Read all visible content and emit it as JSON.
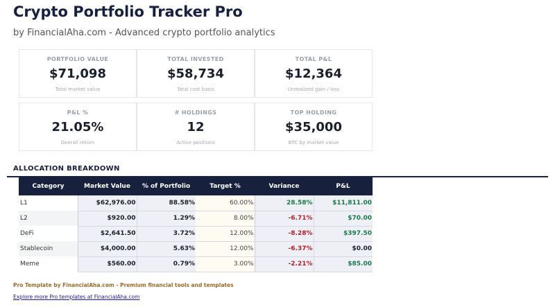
{
  "header": {
    "title": "Crypto Portfolio Tracker Pro",
    "subtitle": "by FinancialAha.com - Advanced crypto portfolio analytics"
  },
  "cards": [
    {
      "label": "PORTFOLIO VALUE",
      "value": "$71,098",
      "note": "Total market value"
    },
    {
      "label": "TOTAL INVESTED",
      "value": "$58,734",
      "note": "Total cost basis"
    },
    {
      "label": "TOTAL P&L",
      "value": "$12,364",
      "note": "Unrealized gain / loss"
    },
    {
      "label": "P&L %",
      "value": "21.05%",
      "note": "Overall return"
    },
    {
      "label": "# HOLDINGS",
      "value": "12",
      "note": "Active positions"
    },
    {
      "label": "TOP HOLDING",
      "value": "$35,000",
      "note": "BTC by market value"
    }
  ],
  "allocation": {
    "heading": "ALLOCATION BREAKDOWN",
    "columns": [
      "Category",
      "Market Value",
      "% of Portfolio",
      "Target %",
      "Variance",
      "P&L"
    ],
    "rows": [
      {
        "category": "L1",
        "market_value": "$62,976.00",
        "pct": "88.58%",
        "target": "60.00%",
        "variance": "28.58%",
        "pl": "$11,811.00"
      },
      {
        "category": "L2",
        "market_value": "$920.00",
        "pct": "1.29%",
        "target": "8.00%",
        "variance": "-6.71%",
        "pl": "$70.00"
      },
      {
        "category": "DeFi",
        "market_value": "$2,641.50",
        "pct": "3.72%",
        "target": "12.00%",
        "variance": "-8.28%",
        "pl": "$397.50"
      },
      {
        "category": "Stablecoin",
        "market_value": "$4,000.00",
        "pct": "5.63%",
        "target": "12.00%",
        "variance": "-6.37%",
        "pl": "$0.00"
      },
      {
        "category": "Meme",
        "market_value": "$560.00",
        "pct": "0.79%",
        "target": "3.00%",
        "variance": "-2.21%",
        "pl": "$85.00"
      }
    ]
  },
  "footer": {
    "text": "Pro Template by FinancialAha.com - Premium financial tools and templates",
    "link": "Explore more Pro templates at FinancialAha.com"
  },
  "colors": {
    "navy": "#17213d",
    "positive": "#1a7a4a",
    "negative": "#b0212e",
    "footer": "#9a6b2e"
  }
}
